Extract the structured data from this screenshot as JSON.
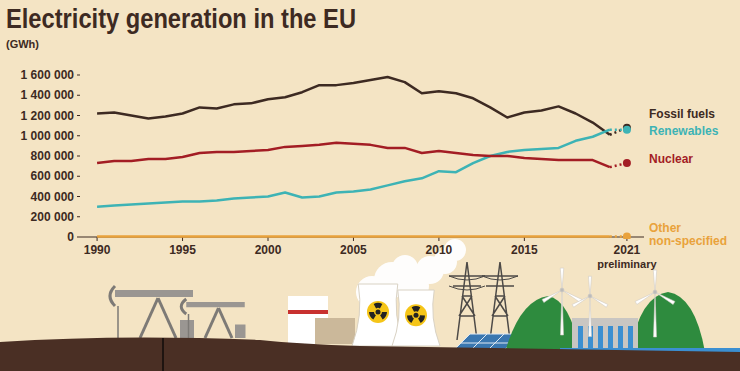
{
  "chart_data": {
    "type": "line",
    "title": "Electricity generation in the EU",
    "subtitle": "(GWh)",
    "annotation": "preliminary",
    "x": [
      1990,
      1991,
      1992,
      1993,
      1994,
      1995,
      1996,
      1997,
      1998,
      1999,
      2000,
      2001,
      2002,
      2003,
      2004,
      2005,
      2006,
      2007,
      2008,
      2009,
      2010,
      2011,
      2012,
      2013,
      2014,
      2015,
      2016,
      2017,
      2018,
      2019,
      2020,
      2021
    ],
    "series": [
      {
        "name": "Fossil fuels",
        "color": "#3d2a22",
        "values": [
          1220000,
          1230000,
          1200000,
          1170000,
          1190000,
          1220000,
          1280000,
          1270000,
          1310000,
          1320000,
          1360000,
          1380000,
          1430000,
          1500000,
          1500000,
          1520000,
          1550000,
          1580000,
          1530000,
          1420000,
          1440000,
          1420000,
          1370000,
          1280000,
          1180000,
          1230000,
          1250000,
          1290000,
          1220000,
          1130000,
          1010000,
          1080000
        ]
      },
      {
        "name": "Renewables",
        "color": "#3db3b5",
        "values": [
          300000,
          310000,
          320000,
          330000,
          340000,
          350000,
          350000,
          360000,
          380000,
          390000,
          400000,
          440000,
          390000,
          400000,
          440000,
          450000,
          470000,
          510000,
          550000,
          580000,
          650000,
          640000,
          730000,
          800000,
          840000,
          860000,
          870000,
          880000,
          950000,
          990000,
          1060000,
          1060000
        ]
      },
      {
        "name": "Nuclear",
        "color": "#a31d24",
        "values": [
          730000,
          750000,
          750000,
          770000,
          770000,
          790000,
          830000,
          840000,
          840000,
          850000,
          860000,
          890000,
          900000,
          910000,
          930000,
          920000,
          910000,
          880000,
          880000,
          830000,
          850000,
          830000,
          810000,
          800000,
          800000,
          780000,
          770000,
          760000,
          760000,
          760000,
          690000,
          730000
        ]
      },
      {
        "name": "Other non-specified",
        "color": "#e9a23b",
        "values": [
          5000,
          5000,
          5000,
          5000,
          5000,
          5000,
          5000,
          5000,
          5000,
          5000,
          5000,
          5000,
          5000,
          5000,
          5000,
          5000,
          5000,
          5000,
          5000,
          5000,
          5000,
          5000,
          5000,
          5000,
          5000,
          5000,
          5000,
          5000,
          5000,
          5000,
          5000,
          5000
        ]
      }
    ],
    "xlim": [
      1989,
      2022
    ],
    "ylim": [
      0,
      1600000
    ],
    "xticks": [
      1990,
      1995,
      2000,
      2005,
      2010,
      2015,
      2021
    ],
    "yticks": [
      0,
      {
        "value": 200000,
        "label": "200 000"
      },
      {
        "value": 400000,
        "label": "400 000"
      },
      {
        "value": 600000,
        "label": "600 000"
      },
      {
        "value": 800000,
        "label": "800 000"
      },
      {
        "value": 1000000,
        "label": "1 000 000"
      },
      {
        "value": 1200000,
        "label": "1 200 000"
      },
      {
        "value": 1400000,
        "label": "1 400 000"
      },
      {
        "value": 1600000,
        "label": "1 600 000"
      }
    ],
    "grid": false,
    "marker": "dot"
  }
}
